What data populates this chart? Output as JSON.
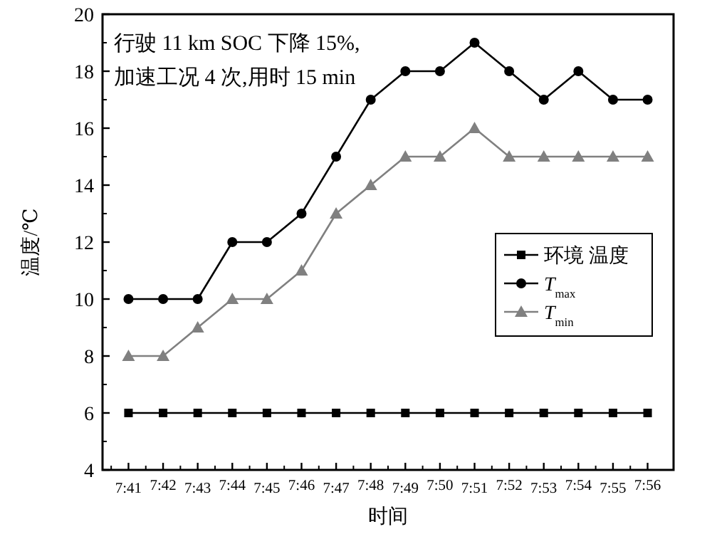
{
  "chart_data": {
    "type": "line",
    "xlabel": "时间",
    "ylabel": "温度/℃",
    "categories": [
      "7:41",
      "7:42",
      "7:43",
      "7:44",
      "7:45",
      "7:46",
      "7:47",
      "7:48",
      "7:49",
      "7:50",
      "7:51",
      "7:52",
      "7:53",
      "7:54",
      "7:55",
      "7:56"
    ],
    "series": [
      {
        "name": "环境 温度",
        "color": "#000000",
        "marker": "square",
        "values": [
          6,
          6,
          6,
          6,
          6,
          6,
          6,
          6,
          6,
          6,
          6,
          6,
          6,
          6,
          6,
          6
        ]
      },
      {
        "name": "*T*$_{max}$",
        "color": "#000000",
        "marker": "circle",
        "values": [
          10,
          10,
          10,
          12,
          12,
          13,
          15,
          17,
          18,
          18,
          19,
          18,
          17,
          18,
          17,
          17
        ]
      },
      {
        "name": "*T*$_{min}$",
        "color": "#808080",
        "marker": "triangle",
        "values": [
          8,
          8,
          9,
          10,
          10,
          11,
          13,
          14,
          15,
          15,
          16,
          15,
          15,
          15,
          15,
          15
        ]
      }
    ],
    "ylim": [
      4,
      20
    ],
    "yticks": [
      4,
      6,
      8,
      10,
      12,
      14,
      16,
      18,
      20
    ],
    "legend": "right",
    "annotations": [
      "行驶 11 km SOC 下降 15%,",
      "加速工况 4 次,用时 15 min"
    ]
  }
}
